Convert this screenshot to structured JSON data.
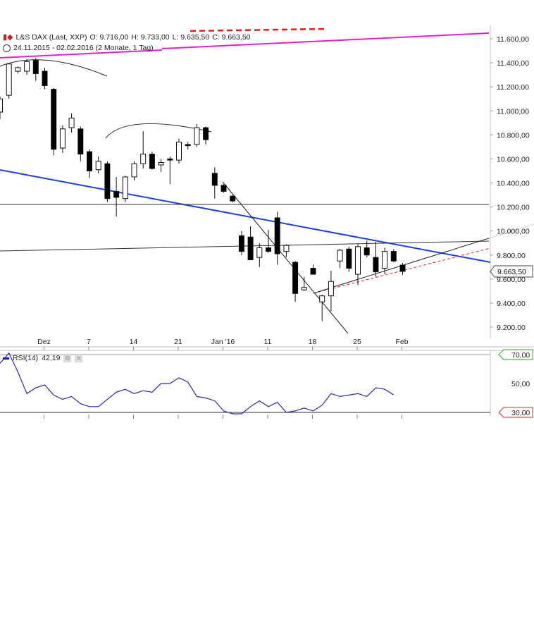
{
  "header": {
    "instrument": "L&S DAX (Last, XXP)",
    "open": "O: 9.716,00",
    "high": "H: 9.733,00",
    "low": "L: 9.635,50",
    "close": "C: 9.663,50",
    "range": "24.11.2015 - 02.02.2016 (2 Monate, 1 Tag)"
  },
  "icons": {
    "chart_icon": "candlestick-chart-icon",
    "clock_icon": "clock-icon"
  },
  "colors": {
    "bull": "#ffffff",
    "bear": "#000000",
    "blue_trend": "#1f3fdc",
    "magenta_trend": "#e020d0",
    "red_dashed": "#e02020",
    "rsi_line": "#2a2aa8",
    "rsi_high_badge": "#3a9a3a",
    "rsi_low_badge": "#c03030"
  },
  "chart_data": [
    {
      "type": "candlestick",
      "title": "L&S DAX (Last, XXP)",
      "x_tick_labels": [
        "Dez",
        "7",
        "14",
        "21",
        "Jan '16",
        "11",
        "18",
        "25",
        "Feb"
      ],
      "y_tick_labels": [
        "11.600,00",
        "11.400,00",
        "11.200,00",
        "11.000,00",
        "10.800,00",
        "10.600,00",
        "10.400,00",
        "10.200,00",
        "10.000,00",
        "9.800,00",
        "9.600,00",
        "9.400,00",
        "9.200,00"
      ],
      "y_ticks": [
        11600,
        11400,
        11200,
        11000,
        10800,
        10600,
        10400,
        10200,
        10000,
        9800,
        9600,
        9400,
        9200
      ],
      "ylim": [
        9100,
        11700
      ],
      "last_price_label": "9.663,50",
      "last_price": 9663.5,
      "candles": [
        {
          "o": 10990,
          "h": 11120,
          "l": 10930,
          "c": 11100
        },
        {
          "o": 11130,
          "h": 11380,
          "l": 11100,
          "c": 11390
        },
        {
          "o": 11330,
          "h": 11370,
          "l": 11310,
          "c": 11360
        },
        {
          "o": 11330,
          "h": 11430,
          "l": 11300,
          "c": 11410
        },
        {
          "o": 11420,
          "h": 11440,
          "l": 11250,
          "c": 11310
        },
        {
          "o": 11330,
          "h": 11360,
          "l": 11180,
          "c": 11210
        },
        {
          "o": 11180,
          "h": 11190,
          "l": 10630,
          "c": 10680
        },
        {
          "o": 10690,
          "h": 10880,
          "l": 10650,
          "c": 10850
        },
        {
          "o": 10860,
          "h": 10980,
          "l": 10820,
          "c": 10940
        },
        {
          "o": 10850,
          "h": 10870,
          "l": 10580,
          "c": 10640
        },
        {
          "o": 10660,
          "h": 10680,
          "l": 10440,
          "c": 10500
        },
        {
          "o": 10510,
          "h": 10620,
          "l": 10480,
          "c": 10580
        },
        {
          "o": 10560,
          "h": 10580,
          "l": 10240,
          "c": 10270
        },
        {
          "o": 10330,
          "h": 10450,
          "l": 10120,
          "c": 10280
        },
        {
          "o": 10270,
          "h": 10460,
          "l": 10240,
          "c": 10450
        },
        {
          "o": 10450,
          "h": 10580,
          "l": 10420,
          "c": 10560
        },
        {
          "o": 10560,
          "h": 10830,
          "l": 10520,
          "c": 10640
        },
        {
          "o": 10640,
          "h": 10660,
          "l": 10510,
          "c": 10520
        },
        {
          "o": 10550,
          "h": 10600,
          "l": 10490,
          "c": 10570
        },
        {
          "o": 10600,
          "h": 10620,
          "l": 10390,
          "c": 10590
        },
        {
          "o": 10590,
          "h": 10770,
          "l": 10560,
          "c": 10740
        },
        {
          "o": 10720,
          "h": 10740,
          "l": 10680,
          "c": 10710
        },
        {
          "o": 10720,
          "h": 10890,
          "l": 10700,
          "c": 10860
        },
        {
          "o": 10860,
          "h": 10870,
          "l": 10720,
          "c": 10760
        },
        {
          "o": 10480,
          "h": 10530,
          "l": 10270,
          "c": 10380
        },
        {
          "o": 10380,
          "h": 10390,
          "l": 10320,
          "c": 10330
        },
        {
          "o": 10290,
          "h": 10300,
          "l": 10240,
          "c": 10250
        },
        {
          "o": 9960,
          "h": 10000,
          "l": 9800,
          "c": 9830
        },
        {
          "o": 9950,
          "h": 10040,
          "l": 9770,
          "c": 9760
        },
        {
          "o": 9780,
          "h": 9900,
          "l": 9700,
          "c": 9860
        },
        {
          "o": 9860,
          "h": 10010,
          "l": 9820,
          "c": 9830
        },
        {
          "o": 10110,
          "h": 10160,
          "l": 9720,
          "c": 9810
        },
        {
          "o": 9830,
          "h": 9890,
          "l": 9780,
          "c": 9880
        },
        {
          "o": 9740,
          "h": 9750,
          "l": 9410,
          "c": 9480
        },
        {
          "o": 9510,
          "h": 9620,
          "l": 9500,
          "c": 9530
        },
        {
          "o": 9690,
          "h": 9720,
          "l": 9640,
          "c": 9640
        },
        {
          "o": 9410,
          "h": 9470,
          "l": 9250,
          "c": 9460
        },
        {
          "o": 9460,
          "h": 9670,
          "l": 9330,
          "c": 9580
        },
        {
          "o": 9750,
          "h": 9850,
          "l": 9690,
          "c": 9840
        },
        {
          "o": 9850,
          "h": 9870,
          "l": 9660,
          "c": 9690
        },
        {
          "o": 9640,
          "h": 9890,
          "l": 9550,
          "c": 9870
        },
        {
          "o": 9860,
          "h": 9920,
          "l": 9780,
          "c": 9800
        },
        {
          "o": 9780,
          "h": 9910,
          "l": 9620,
          "c": 9660
        },
        {
          "o": 9690,
          "h": 9860,
          "l": 9640,
          "c": 9830
        },
        {
          "o": 9830,
          "h": 9850,
          "l": 9740,
          "c": 9750
        },
        {
          "o": 9716,
          "h": 9733,
          "l": 9635.5,
          "c": 9663.5
        }
      ]
    },
    {
      "type": "line",
      "title": "RSI(14)",
      "value_label": "42,19",
      "y_tick_labels": [
        "70,00",
        "50,00",
        "30,00"
      ],
      "y_ticks": [
        70,
        50,
        30
      ],
      "ylim": [
        29,
        71
      ],
      "values": [
        64,
        71,
        58,
        43,
        47,
        49,
        42,
        39,
        41,
        36,
        34,
        34,
        39,
        44,
        46,
        43,
        45,
        44,
        50,
        50,
        54,
        51,
        41,
        40,
        38,
        31,
        29,
        29,
        34,
        38,
        34,
        37,
        30,
        31,
        33,
        31,
        35,
        43,
        41,
        42,
        43,
        41,
        47,
        46,
        42.19
      ]
    }
  ]
}
